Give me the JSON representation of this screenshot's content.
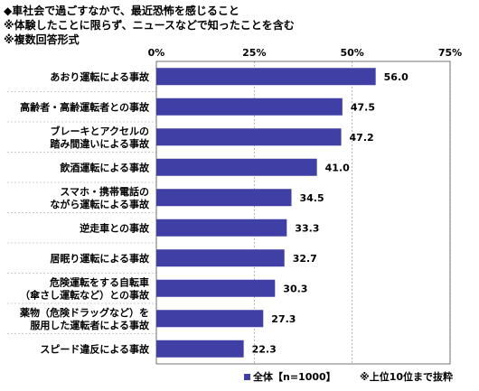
{
  "header": {
    "line1": "◆車社会で過ごすなかで、最近恐怖を感じること",
    "line2": "※体験したことに限らず、ニュースなどで知ったことを含む",
    "line3": "※複数回答形式"
  },
  "legend_label": "全体【n=1000】",
  "footnote": "※上位10位まで抜粋",
  "chart_data": {
    "type": "bar",
    "orientation": "horizontal",
    "xlim": [
      0,
      75
    ],
    "ticks": [
      "0%",
      "25%",
      "50%",
      "75%"
    ],
    "tick_values": [
      0,
      25,
      50,
      75
    ],
    "grid": true,
    "legend_position": "bottom",
    "bar_color": "#3f3fa6",
    "categories": [
      [
        "あおり運転による事故"
      ],
      [
        "高齢者・高齢運転者との事故"
      ],
      [
        "ブレーキとアクセルの",
        "踏み間違いによる事故"
      ],
      [
        "飲酒運転による事故"
      ],
      [
        "スマホ・携帯電話の",
        "ながら運転による事故"
      ],
      [
        "逆走車との事故"
      ],
      [
        "居眠り運転による事故"
      ],
      [
        "危険運転をする自転車",
        "（傘さし運転など）との事故"
      ],
      [
        "薬物（危険ドラッグなど）を",
        "服用した運転者による事故"
      ],
      [
        "スピード違反による事故"
      ]
    ],
    "series": [
      {
        "name": "全体【n=1000】",
        "values": [
          56.0,
          47.5,
          47.2,
          41.0,
          34.5,
          33.3,
          32.7,
          30.3,
          27.3,
          22.3
        ]
      }
    ],
    "value_labels": [
      "56.0",
      "47.5",
      "47.2",
      "41.0",
      "34.5",
      "33.3",
      "32.7",
      "30.3",
      "27.3",
      "22.3"
    ]
  }
}
